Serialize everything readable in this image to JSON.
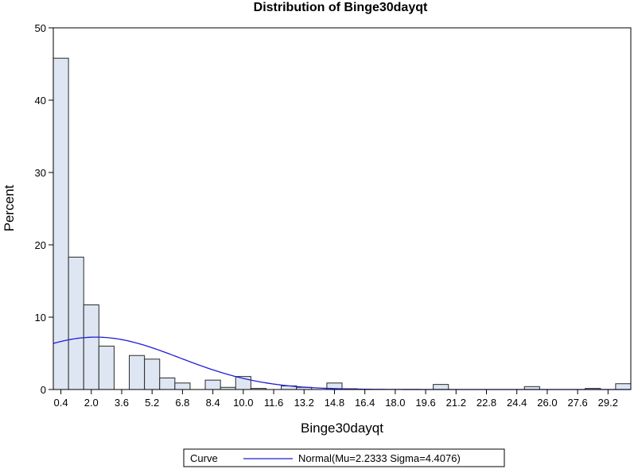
{
  "chart_data": {
    "type": "bar",
    "title": "Distribution of Binge30dayqt",
    "xlabel": "Binge30dayqt",
    "ylabel": "Percent",
    "ylim": [
      0,
      50
    ],
    "yticks": [
      "0",
      "10",
      "20",
      "30",
      "40",
      "50"
    ],
    "xlim": [
      0.0,
      30.4
    ],
    "bin_width": 0.8,
    "xtick_values": [
      0.4,
      2.0,
      3.6,
      5.2,
      6.8,
      8.4,
      10.0,
      11.6,
      13.2,
      14.8,
      16.4,
      18.0,
      19.6,
      21.2,
      22.8,
      24.4,
      26.0,
      27.6,
      29.2
    ],
    "xticks": [
      "0.4",
      "2.0",
      "3.6",
      "5.2",
      "6.8",
      "8.4",
      "10.0",
      "11.6",
      "13.2",
      "14.8",
      "16.4",
      "18.0",
      "19.6",
      "21.2",
      "22.8",
      "24.4",
      "26.0",
      "27.6",
      "29.2"
    ],
    "x": [
      0.4,
      1.2,
      2.0,
      2.8,
      3.6,
      4.4,
      5.2,
      6.0,
      6.8,
      7.6,
      8.4,
      9.2,
      10.0,
      10.8,
      11.6,
      12.4,
      13.2,
      14.0,
      14.8,
      15.6,
      16.4,
      17.2,
      18.0,
      18.8,
      19.6,
      20.4,
      21.2,
      22.0,
      22.8,
      23.6,
      24.4,
      25.2,
      26.0,
      26.8,
      27.6,
      28.4,
      29.2,
      30.0
    ],
    "values": [
      45.8,
      18.3,
      11.7,
      6.0,
      0,
      4.7,
      4.2,
      1.6,
      0.9,
      0,
      1.3,
      0.3,
      1.8,
      0.15,
      0,
      0.5,
      0.3,
      0,
      0.9,
      0.1,
      0,
      0,
      0,
      0,
      0,
      0.7,
      0,
      0,
      0,
      0,
      0,
      0.4,
      0,
      0,
      0,
      0.15,
      0,
      0.8
    ],
    "curve": {
      "type": "normal",
      "mu": 2.2333,
      "sigma": 4.4076,
      "color": "#1f1fd6"
    },
    "legend": {
      "position": "bottom",
      "title": "Curve",
      "entries": [
        "Normal(Mu=2.2333 Sigma=4.4076)"
      ]
    },
    "grid": false
  }
}
